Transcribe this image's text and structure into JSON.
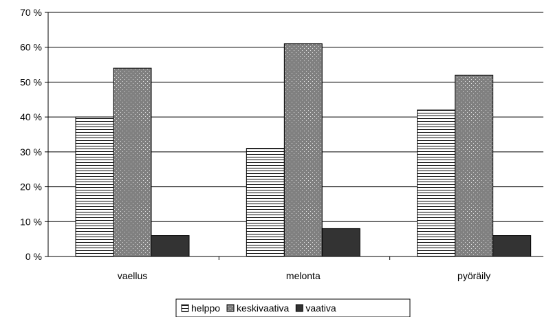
{
  "chart_data": {
    "type": "bar",
    "categories": [
      "vaellus",
      "melonta",
      "pyöräily"
    ],
    "series": [
      {
        "name": "helppo",
        "values": [
          40,
          31,
          42
        ],
        "pattern": "horizontal-lines",
        "color": "#ffffff"
      },
      {
        "name": "keskivaativa",
        "values": [
          54,
          61,
          52
        ],
        "pattern": "dots",
        "color": "#808080"
      },
      {
        "name": "vaativa",
        "values": [
          6,
          8,
          6
        ],
        "pattern": "solid",
        "color": "#333333"
      }
    ],
    "y_ticks": [
      "0 %",
      "10 %",
      "20 %",
      "30 %",
      "40 %",
      "50 %",
      "60 %",
      "70 %"
    ],
    "ylim": [
      0,
      70
    ],
    "grid": true,
    "legend_position": "bottom"
  }
}
